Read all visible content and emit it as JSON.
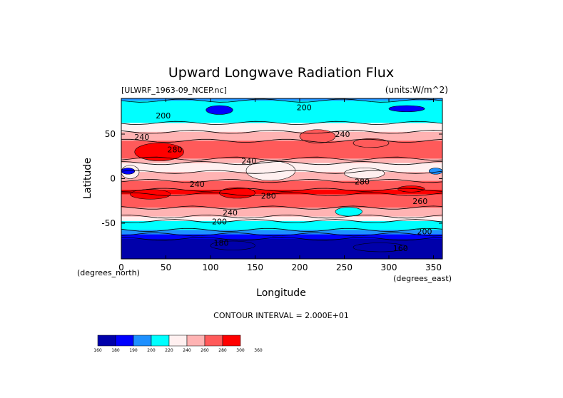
{
  "chart_data": {
    "type": "heatmap",
    "title": "Upward Longwave Radiation Flux",
    "dataset_label": "[ULWRF_1963-09_NCEP.nc]",
    "units_label": "(units:W/m^2)",
    "xlabel": "Longitude",
    "ylabel": "Latitude",
    "x_unit_label": "(degrees_east)",
    "y_unit_label": "(degrees_north)",
    "xlim": [
      0,
      360
    ],
    "ylim": [
      -90,
      90
    ],
    "x_ticks": [
      0,
      50,
      100,
      150,
      200,
      250,
      300,
      350
    ],
    "y_ticks": [
      -50,
      0,
      50
    ],
    "contour_interval_text": "CONTOUR INTERVAL = 2.000E+01",
    "contour_labels": [
      {
        "text": "200",
        "lon": 205,
        "lat": 80
      },
      {
        "text": "200",
        "lon": 47,
        "lat": 71
      },
      {
        "text": "240",
        "lon": 23,
        "lat": 47
      },
      {
        "text": "240",
        "lon": 248,
        "lat": 50
      },
      {
        "text": "280",
        "lon": 60,
        "lat": 33
      },
      {
        "text": "240",
        "lon": 143,
        "lat": 20
      },
      {
        "text": "240",
        "lon": 85,
        "lat": -6
      },
      {
        "text": "280",
        "lon": 270,
        "lat": -3
      },
      {
        "text": "280",
        "lon": 165,
        "lat": -19
      },
      {
        "text": "260",
        "lon": 335,
        "lat": -25
      },
      {
        "text": "240",
        "lon": 122,
        "lat": -38
      },
      {
        "text": "200",
        "lon": 110,
        "lat": -48
      },
      {
        "text": "200",
        "lon": 340,
        "lat": -59
      },
      {
        "text": "180",
        "lon": 112,
        "lat": -72
      },
      {
        "text": "160",
        "lon": 313,
        "lat": -78
      }
    ],
    "colorbar": {
      "levels": [
        160,
        180,
        190,
        200,
        220,
        240,
        260,
        280,
        300,
        360
      ],
      "colors": [
        "#0000aa",
        "#0000ff",
        "#1e90ff",
        "#00ffff",
        "#fff0f0",
        "#ffb3b3",
        "#ff5a5a",
        "#ff0000"
      ]
    },
    "value_rows": [
      {
        "lat": 90,
        "value": 190
      },
      {
        "lat": 85,
        "value": 200
      },
      {
        "lat": 80,
        "value": 210
      },
      {
        "lat": 75,
        "value": 200
      },
      {
        "lat": 70,
        "value": 215
      },
      {
        "lat": 65,
        "value": 210
      },
      {
        "lat": 60,
        "value": 225
      },
      {
        "lat": 55,
        "value": 230
      },
      {
        "lat": 50,
        "value": 245
      },
      {
        "lat": 45,
        "value": 250
      },
      {
        "lat": 40,
        "value": 262
      },
      {
        "lat": 35,
        "value": 268
      },
      {
        "lat": 30,
        "value": 272
      },
      {
        "lat": 25,
        "value": 262
      },
      {
        "lat": 20,
        "value": 250
      },
      {
        "lat": 15,
        "value": 235
      },
      {
        "lat": 10,
        "value": 230
      },
      {
        "lat": 5,
        "value": 240
      },
      {
        "lat": 0,
        "value": 255
      },
      {
        "lat": -5,
        "value": 266
      },
      {
        "lat": -10,
        "value": 272
      },
      {
        "lat": -15,
        "value": 282
      },
      {
        "lat": -20,
        "value": 278
      },
      {
        "lat": -25,
        "value": 270
      },
      {
        "lat": -30,
        "value": 262
      },
      {
        "lat": -35,
        "value": 252
      },
      {
        "lat": -40,
        "value": 240
      },
      {
        "lat": -45,
        "value": 228
      },
      {
        "lat": -50,
        "value": 215
      },
      {
        "lat": -55,
        "value": 205
      },
      {
        "lat": -60,
        "value": 195
      },
      {
        "lat": -65,
        "value": 185
      },
      {
        "lat": -70,
        "value": 175
      },
      {
        "lat": -75,
        "value": 168
      },
      {
        "lat": -80,
        "value": 165
      },
      {
        "lat": -85,
        "value": 170
      },
      {
        "lat": -90,
        "value": 172
      }
    ],
    "value_patches": [
      {
        "lon_range": [
          15,
          70
        ],
        "lat_range": [
          20,
          40
        ],
        "value": 310
      },
      {
        "lon_range": [
          0,
          20
        ],
        "lat_range": [
          0,
          15
        ],
        "value": 220
      },
      {
        "lon_range": [
          0,
          15
        ],
        "lat_range": [
          5,
          12
        ],
        "value": 180
      },
      {
        "lon_range": [
          345,
          360
        ],
        "lat_range": [
          5,
          12
        ],
        "value": 190
      },
      {
        "lon_range": [
          140,
          195
        ],
        "lat_range": [
          -2,
          20
        ],
        "value": 225
      },
      {
        "lon_range": [
          250,
          295
        ],
        "lat_range": [
          0,
          12
        ],
        "value": 220
      },
      {
        "lon_range": [
          110,
          150
        ],
        "lat_range": [
          -22,
          -10
        ],
        "value": 310
      },
      {
        "lon_range": [
          10,
          55
        ],
        "lat_range": [
          -23,
          -12
        ],
        "value": 305
      },
      {
        "lon_range": [
          310,
          340
        ],
        "lat_range": [
          -15,
          -8
        ],
        "value": 305
      },
      {
        "lon_range": [
          200,
          240
        ],
        "lat_range": [
          40,
          55
        ],
        "value": 270
      },
      {
        "lon_range": [
          260,
          300
        ],
        "lat_range": [
          35,
          45
        ],
        "value": 268
      },
      {
        "lon_range": [
          240,
          270
        ],
        "lat_range": [
          -42,
          -32
        ],
        "value": 200
      },
      {
        "lon_range": [
          95,
          125
        ],
        "lat_range": [
          72,
          82
        ],
        "value": 180
      },
      {
        "lon_range": [
          300,
          340
        ],
        "lat_range": [
          75,
          82
        ],
        "value": 185
      },
      {
        "lon_range": [
          100,
          150
        ],
        "lat_range": [
          -80,
          -70
        ],
        "value": 160
      },
      {
        "lon_range": [
          260,
          320
        ],
        "lat_range": [
          -82,
          -72
        ],
        "value": 162
      }
    ]
  }
}
